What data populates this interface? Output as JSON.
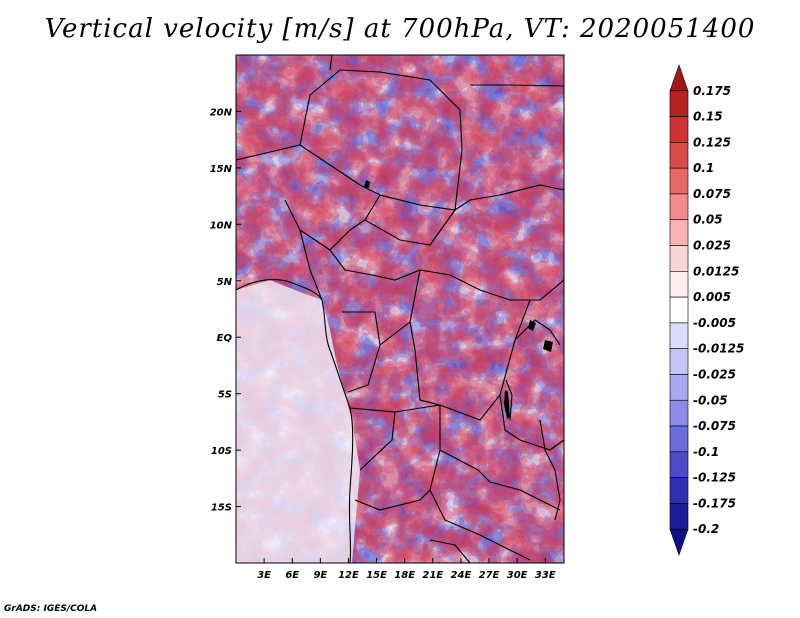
{
  "title": "Vertical velocity [m/s] at 700hPa, VT: 2020051400",
  "footer": "GrADS: IGES/COLA",
  "map": {
    "variable": "Vertical velocity",
    "units": "m/s",
    "level": "700hPa",
    "valid_time": "2020051400",
    "lon_range": [
      0,
      35
    ],
    "lat_range": [
      -20,
      25
    ],
    "lat_labels": [
      {
        "text": "20N",
        "lat": 20
      },
      {
        "text": "15N",
        "lat": 15
      },
      {
        "text": "10N",
        "lat": 10
      },
      {
        "text": "5N",
        "lat": 5
      },
      {
        "text": "EQ",
        "lat": 0
      },
      {
        "text": "5S",
        "lat": -5
      },
      {
        "text": "10S",
        "lat": -10
      },
      {
        "text": "15S",
        "lat": -15
      }
    ],
    "lon_labels": [
      {
        "text": "3E",
        "lon": 3
      },
      {
        "text": "6E",
        "lon": 6
      },
      {
        "text": "9E",
        "lon": 9
      },
      {
        "text": "12E",
        "lon": 12
      },
      {
        "text": "15E",
        "lon": 15
      },
      {
        "text": "18E",
        "lon": 18
      },
      {
        "text": "21E",
        "lon": 21
      },
      {
        "text": "24E",
        "lon": 24
      },
      {
        "text": "27E",
        "lon": 27
      },
      {
        "text": "30E",
        "lon": 30
      },
      {
        "text": "33E",
        "lon": 33
      }
    ]
  },
  "colorbar": {
    "labels": [
      "0.175",
      "0.15",
      "0.125",
      "0.1",
      "0.075",
      "0.05",
      "0.025",
      "0.0125",
      "0.005",
      "-0.005",
      "-0.0125",
      "-0.025",
      "-0.05",
      "-0.075",
      "-0.1",
      "-0.125",
      "-0.175",
      "-0.2"
    ],
    "colors": [
      "#a01818",
      "#b82222",
      "#cc3333",
      "#dd4a4a",
      "#e86868",
      "#f08c8c",
      "#f7b2b2",
      "#fbd4d4",
      "#fdecec",
      "#ffffff",
      "#dcdcf8",
      "#c4c4f4",
      "#a8a8ee",
      "#8c8ce8",
      "#6c6cdc",
      "#4c4cc8",
      "#3030ae",
      "#1c1c96",
      "#10108a"
    ]
  }
}
